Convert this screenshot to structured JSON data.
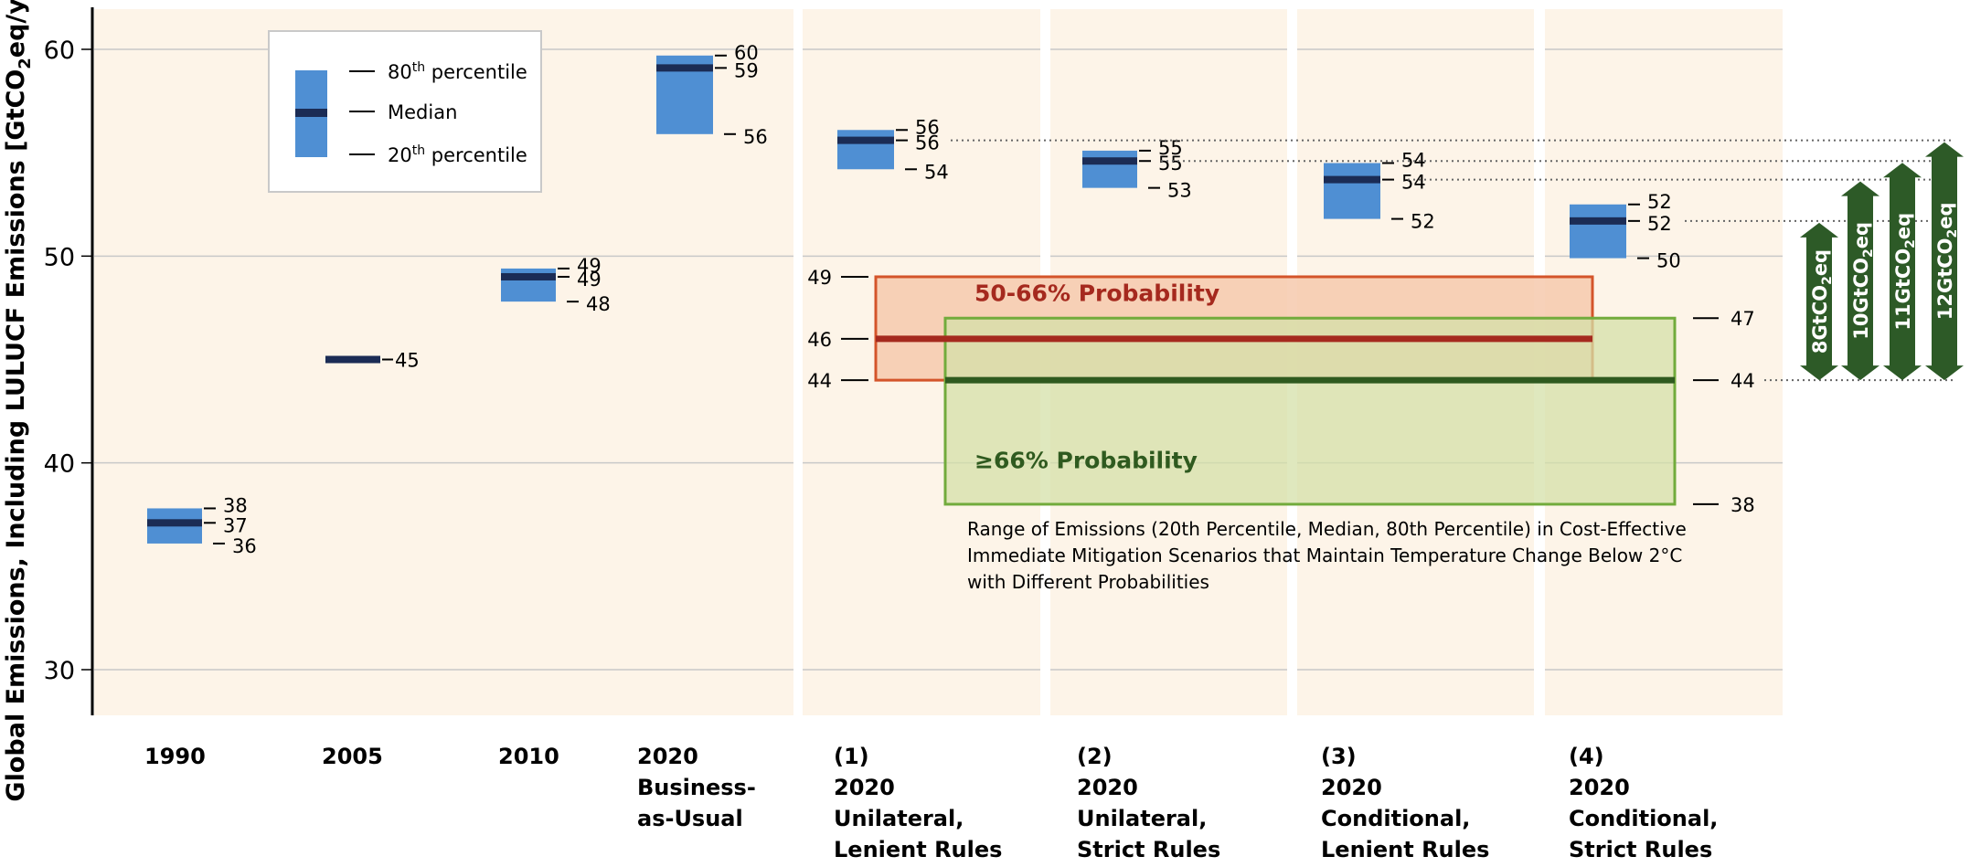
{
  "chart_data": {
    "type": "box",
    "ylabel": "Global Emissions, Including LULUCF Emissions [GtCO₂eq/yr]",
    "ylabel_main": "Global Emissions, Including LULUCF Emissions [GtCO",
    "ylabel_sub": "2",
    "ylabel_end": "eq/yr]",
    "ylim": [
      26.8,
      61.5
    ],
    "yticks": [
      "30",
      "40",
      "50",
      "60"
    ],
    "ytick_values": [
      30,
      40,
      50,
      60
    ],
    "grid": true,
    "categories": [
      {
        "lines": [
          "1990"
        ]
      },
      {
        "lines": [
          "2005"
        ]
      },
      {
        "lines": [
          "2010"
        ]
      },
      {
        "lines": [
          "2020",
          "Business-",
          "as-Usual"
        ]
      },
      {
        "lines": [
          "(1)",
          "2020",
          "Unilateral,",
          "Lenient Rules"
        ]
      },
      {
        "lines": [
          "(2)",
          "2020",
          "Unilateral,",
          "Strict Rules"
        ]
      },
      {
        "lines": [
          "(3)",
          "2020",
          "Conditional,",
          "Lenient Rules"
        ]
      },
      {
        "lines": [
          "(4)",
          "2020",
          "Conditional,",
          "Strict Rules"
        ]
      }
    ],
    "boxes": [
      {
        "category": "1990",
        "p20": 36.1,
        "median": 37.1,
        "p80": 37.8,
        "labels": [
          "38",
          "37",
          "36"
        ]
      },
      {
        "category": "2005",
        "p20": 45.0,
        "median": 45.0,
        "p80": 45.0,
        "labels": [
          "45"
        ]
      },
      {
        "category": "2010",
        "p20": 47.8,
        "median": 49.0,
        "p80": 49.4,
        "labels": [
          "49",
          "49",
          "48"
        ]
      },
      {
        "category": "2020 Business-as-Usual",
        "p20": 55.9,
        "median": 59.1,
        "p80": 59.7,
        "labels": [
          "60",
          "59",
          "56"
        ]
      },
      {
        "category": "(1) 2020 Unilateral, Lenient Rules",
        "p20": 54.2,
        "median": 55.6,
        "p80": 56.1,
        "labels": [
          "56",
          "56",
          "54"
        ]
      },
      {
        "category": "(2) 2020 Unilateral, Strict Rules",
        "p20": 53.3,
        "median": 54.6,
        "p80": 55.1,
        "labels": [
          "55",
          "55",
          "53"
        ]
      },
      {
        "category": "(3) 2020 Conditional, Lenient Rules",
        "p20": 51.8,
        "median": 53.7,
        "p80": 54.5,
        "labels": [
          "54",
          "54",
          "52"
        ]
      },
      {
        "category": "(4) 2020 Conditional, Strict Rules",
        "p20": 49.9,
        "median": 51.7,
        "p80": 52.5,
        "labels": [
          "52",
          "52",
          "50"
        ]
      }
    ],
    "legend": {
      "position": "top-left",
      "items": [
        {
          "text": "80",
          "sup": "th",
          "rest": " percentile"
        },
        {
          "text": "Median",
          "sup": "",
          "rest": ""
        },
        {
          "text": "20",
          "sup": "th",
          "rest": " percentile"
        }
      ]
    },
    "ranges": [
      {
        "name": "50-66% Probability",
        "p20": 44,
        "median": 46,
        "p80": 49,
        "labels": [
          "49",
          "46",
          "44"
        ],
        "color": "#d4542a",
        "median_color": "#a5291e",
        "fill": "#f6c9ad"
      },
      {
        "name": "≥66% Probability",
        "p20": 38,
        "median": 44,
        "p80": 47,
        "labels": [
          "47",
          "44",
          "38"
        ],
        "color": "#72ab3c",
        "median_color": "#2f5a1f",
        "fill": "#d4e0a8"
      }
    ],
    "range_note": [
      "Range of Emissions (20th Percentile, Median, 80th Percentile) in Cost-Effective",
      "Immediate Mitigation Scenarios that Maintain Temperature Change Below 2°C",
      "with Different Probabilities"
    ],
    "gaps": [
      {
        "label": "8GtCO₂eq",
        "main": "8GtCO",
        "sub": "2",
        "end": "eq",
        "from": 44,
        "to": 51.7
      },
      {
        "label": "10GtCO₂eq",
        "main": "10GtCO",
        "sub": "2",
        "end": "eq",
        "from": 44,
        "to": 53.7
      },
      {
        "label": "11GtCO₂eq",
        "main": "11GtCO",
        "sub": "2",
        "end": "eq",
        "from": 44,
        "to": 54.6
      },
      {
        "label": "12GtCO₂eq",
        "main": "12GtCO",
        "sub": "2",
        "end": "eq",
        "from": 44,
        "to": 55.6
      }
    ],
    "colors": {
      "panel": "#fdf4e8",
      "box": "#4f8fd3",
      "median": "#1b2c55",
      "grid": "#c8c8c8",
      "arrow": "#2d5a27",
      "axis": "#000000"
    }
  }
}
